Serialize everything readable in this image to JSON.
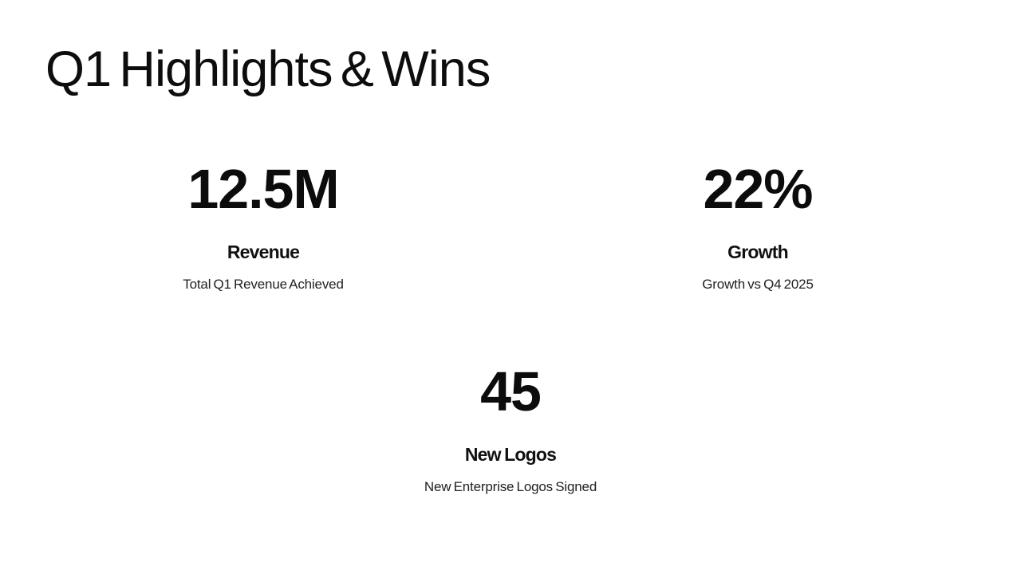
{
  "slide": {
    "title": "Q1 Highlights & Wins",
    "stats": [
      {
        "value": "12.5M",
        "label": "Revenue",
        "description": "Total Q1 Revenue Achieved"
      },
      {
        "value": "22%",
        "label": "Growth",
        "description": "Growth vs Q4 2025"
      },
      {
        "value": "45",
        "label": "New Logos",
        "description": "New Enterprise Logos Signed"
      }
    ],
    "colors": {
      "background": "#ffffff",
      "primary_text": "#0c0c0c",
      "secondary_text": "#222222"
    }
  }
}
